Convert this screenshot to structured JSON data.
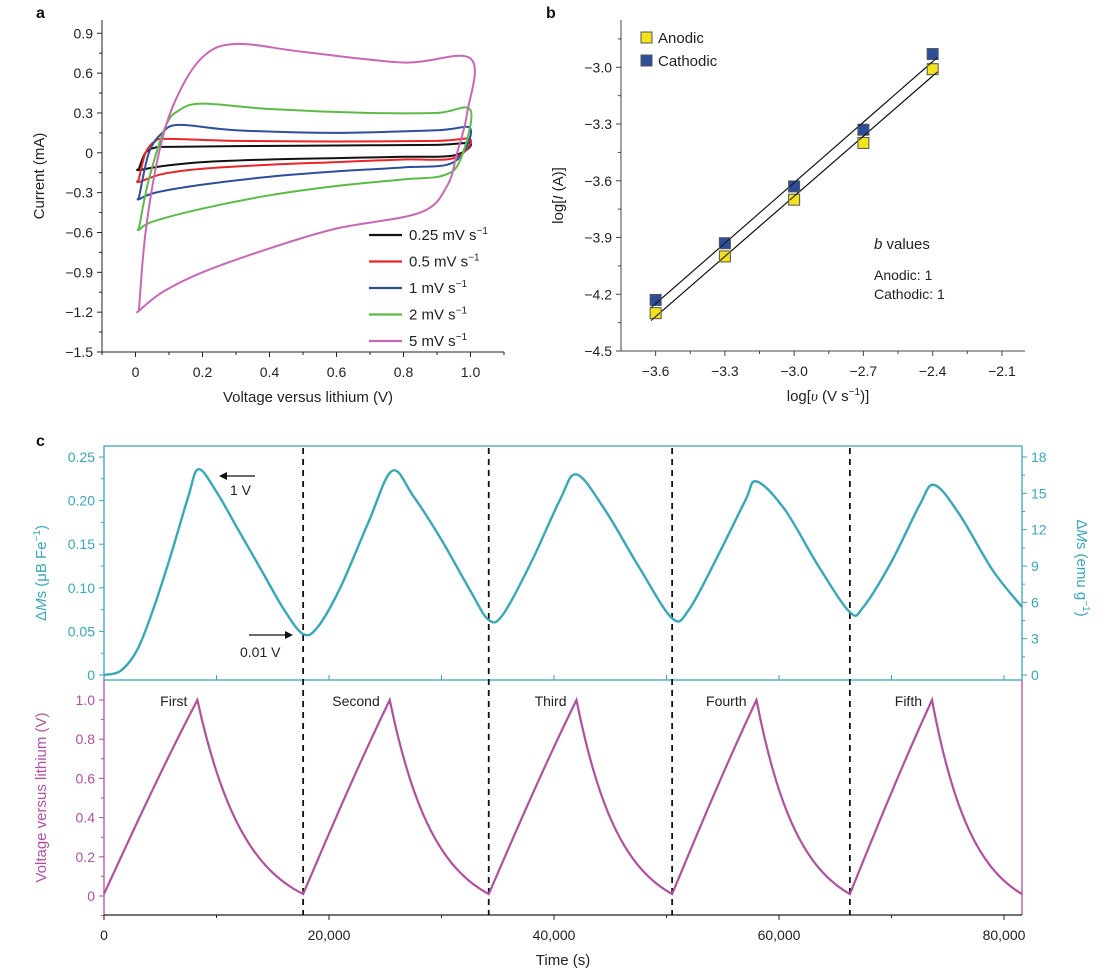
{
  "chart_data": [
    {
      "panel": "a",
      "type": "line",
      "title": "",
      "xlabel": "Voltage versus lithium (V)",
      "ylabel": "Current (mA)",
      "xlim": [
        -0.1,
        1.1
      ],
      "ylim": [
        -1.5,
        1.0
      ],
      "xticks": [
        0,
        0.2,
        0.4,
        0.6,
        0.8,
        1.0
      ],
      "xtick_labels": [
        "0",
        "0.2",
        "0.4",
        "0.6",
        "0.8",
        "1.0"
      ],
      "yticks": [
        0.9,
        0.6,
        0.3,
        0,
        -0.3,
        -0.6,
        -0.9,
        -1.2,
        -1.5
      ],
      "ytick_labels": [
        "0.9",
        "0.6",
        "0.3",
        "0",
        "−0.3",
        "−0.6",
        "−0.9",
        "−1.2",
        "−1.5"
      ],
      "legend_position": "bottom-right",
      "series": [
        {
          "name": "0.25 mV s⁻¹",
          "label_main": "0.25 mV s",
          "label_sup": "−1",
          "color": "#111111",
          "anodic": [
            [
              0.01,
              -0.12
            ],
            [
              0.03,
              0.0
            ],
            [
              0.06,
              0.04
            ],
            [
              0.1,
              0.045
            ],
            [
              0.3,
              0.05
            ],
            [
              0.6,
              0.055
            ],
            [
              0.9,
              0.06
            ],
            [
              1.0,
              0.07
            ]
          ],
          "cathodic": [
            [
              1.0,
              0.02
            ],
            [
              0.95,
              -0.02
            ],
            [
              0.8,
              -0.03
            ],
            [
              0.6,
              -0.04
            ],
            [
              0.4,
              -0.05
            ],
            [
              0.2,
              -0.07
            ],
            [
              0.08,
              -0.1
            ],
            [
              0.01,
              -0.13
            ]
          ]
        },
        {
          "name": "0.5 mV s⁻¹",
          "label_main": "0.5 mV s",
          "label_sup": "−1",
          "color": "#e8262a",
          "anodic": [
            [
              0.01,
              -0.2
            ],
            [
              0.03,
              0.0
            ],
            [
              0.06,
              0.09
            ],
            [
              0.1,
              0.105
            ],
            [
              0.3,
              0.09
            ],
            [
              0.6,
              0.085
            ],
            [
              0.9,
              0.09
            ],
            [
              1.0,
              0.1
            ]
          ],
          "cathodic": [
            [
              1.0,
              0.03
            ],
            [
              0.95,
              -0.04
            ],
            [
              0.8,
              -0.05
            ],
            [
              0.6,
              -0.07
            ],
            [
              0.4,
              -0.09
            ],
            [
              0.2,
              -0.12
            ],
            [
              0.08,
              -0.16
            ],
            [
              0.01,
              -0.22
            ]
          ]
        },
        {
          "name": "1 mV s⁻¹",
          "label_main": "1 mV s",
          "label_sup": "−1",
          "color": "#2d4f9b",
          "anodic": [
            [
              0.01,
              -0.34
            ],
            [
              0.04,
              0.0
            ],
            [
              0.08,
              0.15
            ],
            [
              0.13,
              0.21
            ],
            [
              0.3,
              0.17
            ],
            [
              0.6,
              0.15
            ],
            [
              0.9,
              0.17
            ],
            [
              1.0,
              0.18
            ]
          ],
          "cathodic": [
            [
              1.0,
              0.05
            ],
            [
              0.95,
              -0.07
            ],
            [
              0.8,
              -0.11
            ],
            [
              0.6,
              -0.14
            ],
            [
              0.4,
              -0.18
            ],
            [
              0.2,
              -0.24
            ],
            [
              0.06,
              -0.3
            ],
            [
              0.01,
              -0.35
            ]
          ]
        },
        {
          "name": "2 mV s⁻¹",
          "label_main": "2 mV s",
          "label_sup": "−1",
          "color": "#5cbb46",
          "anodic": [
            [
              0.01,
              -0.57
            ],
            [
              0.04,
              -0.2
            ],
            [
              0.09,
              0.2
            ],
            [
              0.13,
              0.32
            ],
            [
              0.2,
              0.37
            ],
            [
              0.4,
              0.33
            ],
            [
              0.7,
              0.3
            ],
            [
              0.9,
              0.3
            ],
            [
              1.0,
              0.32
            ]
          ],
          "cathodic": [
            [
              1.0,
              0.2
            ],
            [
              0.97,
              -0.05
            ],
            [
              0.92,
              -0.17
            ],
            [
              0.8,
              -0.2
            ],
            [
              0.6,
              -0.25
            ],
            [
              0.4,
              -0.32
            ],
            [
              0.2,
              -0.42
            ],
            [
              0.05,
              -0.52
            ],
            [
              0.01,
              -0.58
            ]
          ]
        },
        {
          "name": "5 mV s⁻¹",
          "label_main": "5 mV s",
          "label_sup": "−1",
          "color": "#c867b4",
          "anodic": [
            [
              0.01,
              -1.19
            ],
            [
              0.03,
              -0.6
            ],
            [
              0.07,
              0.0
            ],
            [
              0.12,
              0.4
            ],
            [
              0.2,
              0.72
            ],
            [
              0.3,
              0.82
            ],
            [
              0.5,
              0.76
            ],
            [
              0.8,
              0.68
            ],
            [
              1.0,
              0.71
            ]
          ],
          "cathodic": [
            [
              1.0,
              0.7
            ],
            [
              0.99,
              0.3
            ],
            [
              0.96,
              0.0
            ],
            [
              0.93,
              -0.25
            ],
            [
              0.85,
              -0.45
            ],
            [
              0.6,
              -0.57
            ],
            [
              0.4,
              -0.72
            ],
            [
              0.2,
              -0.9
            ],
            [
              0.08,
              -1.05
            ],
            [
              0.01,
              -1.19
            ]
          ]
        }
      ]
    },
    {
      "panel": "b",
      "type": "scatter",
      "title": "",
      "xlabel": "log[υ (V s⁻¹)]",
      "xlabel_main": "log[",
      "xlabel_var": "υ",
      "xlabel_rest": " (V s",
      "xlabel_sup": "−1",
      "xlabel_end": ")]",
      "ylabel": "log[I (A)]",
      "ylabel_main": "log[",
      "ylabel_var": "I",
      "ylabel_end": " (A)]",
      "xlim": [
        -3.75,
        -2.0
      ],
      "ylim": [
        -4.5,
        -2.75
      ],
      "xticks": [
        -3.6,
        -3.3,
        -3.0,
        -2.7,
        -2.4,
        -2.1
      ],
      "xtick_labels": [
        "−3.6",
        "−3.3",
        "−3.0",
        "−2.7",
        "−2.4",
        "−2.1"
      ],
      "yticks": [
        -3.0,
        -3.3,
        -3.6,
        -3.9,
        -4.2,
        -4.5
      ],
      "ytick_labels": [
        "−3.0",
        "−3.3",
        "−3.6",
        "−3.9",
        "−4.2",
        "−4.5"
      ],
      "legend_position": "top-left",
      "series": [
        {
          "name": "Anodic",
          "color": "#f1e21b",
          "x": [
            -3.6,
            -3.3,
            -3.0,
            -2.7,
            -2.4
          ],
          "y": [
            -4.3,
            -4.0,
            -3.7,
            -3.4,
            -3.01
          ]
        },
        {
          "name": "Cathodic",
          "color": "#2d4f9b",
          "x": [
            -3.6,
            -3.3,
            -3.0,
            -2.7,
            -2.4
          ],
          "y": [
            -4.23,
            -3.93,
            -3.63,
            -3.33,
            -2.93
          ]
        }
      ],
      "annotation": {
        "title_var": "b",
        "title_rest": " values",
        "lines": [
          "Anodic: 1",
          "Cathodic: 1"
        ]
      }
    },
    {
      "panel": "c-top",
      "type": "line",
      "title": "",
      "xlabel": "",
      "ylabel": "ΔMs (μB Fe⁻¹)",
      "ylabel_pre": "Δ",
      "ylabel_var": "M",
      "ylabel_rest": "s (μB Fe",
      "ylabel_sup": "−1",
      "ylabel_end": ")",
      "ylabel_right": "ΔMs (emu g⁻¹)",
      "ylabel_right_pre": "Δ",
      "ylabel_right_var": "M",
      "ylabel_right_rest": "s (emu g",
      "ylabel_right_sup": "−1",
      "ylabel_right_end": ")",
      "color": "#3aa7b5",
      "xlim": [
        0,
        81600
      ],
      "ylim": [
        -0.002,
        0.262
      ],
      "yticks": [
        0,
        0.05,
        0.1,
        0.15,
        0.2,
        0.25
      ],
      "ytick_labels": [
        "0",
        "0.05",
        "0.10",
        "0.15",
        "0.20",
        "0.25"
      ],
      "yticks_right": [
        0,
        3,
        6,
        9,
        12,
        15,
        18
      ],
      "ytick_labels_right": [
        "0",
        "3",
        "6",
        "9",
        "12",
        "15",
        "18"
      ],
      "ylim_right": [
        0,
        18
      ],
      "points": [
        [
          0,
          0.0
        ],
        [
          1500,
          0.005
        ],
        [
          3000,
          0.03
        ],
        [
          4500,
          0.08
        ],
        [
          6000,
          0.14
        ],
        [
          7500,
          0.205
        ],
        [
          8400,
          0.236
        ],
        [
          10000,
          0.21
        ],
        [
          12000,
          0.165
        ],
        [
          14000,
          0.12
        ],
        [
          16000,
          0.075
        ],
        [
          17700,
          0.047
        ],
        [
          19000,
          0.055
        ],
        [
          21000,
          0.1
        ],
        [
          23500,
          0.175
        ],
        [
          25600,
          0.234
        ],
        [
          27500,
          0.205
        ],
        [
          30000,
          0.155
        ],
        [
          32500,
          0.098
        ],
        [
          34200,
          0.063
        ],
        [
          35500,
          0.07
        ],
        [
          38000,
          0.13
        ],
        [
          40500,
          0.2
        ],
        [
          42000,
          0.23
        ],
        [
          44500,
          0.19
        ],
        [
          47500,
          0.125
        ],
        [
          50500,
          0.065
        ],
        [
          52000,
          0.075
        ],
        [
          54500,
          0.135
        ],
        [
          57000,
          0.2
        ],
        [
          58000,
          0.222
        ],
        [
          60500,
          0.19
        ],
        [
          63500,
          0.125
        ],
        [
          66300,
          0.072
        ],
        [
          67500,
          0.078
        ],
        [
          70000,
          0.13
        ],
        [
          72500,
          0.195
        ],
        [
          73800,
          0.218
        ],
        [
          76000,
          0.185
        ],
        [
          79000,
          0.12
        ],
        [
          81600,
          0.078
        ]
      ],
      "annotations": [
        {
          "text": "1 V",
          "x": 8400,
          "y": 0.236,
          "arrow": "left"
        },
        {
          "text": "0.01 V",
          "x": 17700,
          "y": 0.047,
          "arrow": "right"
        }
      ]
    },
    {
      "panel": "c-bottom",
      "type": "line",
      "title": "",
      "xlabel": "Time (s)",
      "ylabel": "Voltage versus lithium (V)",
      "color": "#b0509e",
      "xlim": [
        0,
        81600
      ],
      "ylim": [
        -0.1,
        1.1
      ],
      "xticks": [
        0,
        20000,
        40000,
        60000,
        80000
      ],
      "xtick_labels": [
        "0",
        "20,000",
        "40,000",
        "60,000",
        "80,000"
      ],
      "yticks": [
        0,
        0.2,
        0.4,
        0.6,
        0.8,
        1.0
      ],
      "ytick_labels": [
        "0",
        "0.2",
        "0.4",
        "0.6",
        "0.8",
        "1.0"
      ],
      "cycles": [
        {
          "label": "First",
          "start": 0,
          "peak": 8300,
          "end": 17700
        },
        {
          "label": "Second",
          "start": 17700,
          "peak": 25400,
          "end": 34200
        },
        {
          "label": "Third",
          "start": 34200,
          "peak": 42000,
          "end": 50500
        },
        {
          "label": "Fourth",
          "start": 50500,
          "peak": 58000,
          "end": 66300
        },
        {
          "label": "Fifth",
          "start": 66300,
          "peak": 73600,
          "end": 81600
        }
      ],
      "vmin": 0.01,
      "vmax": 1.0,
      "cycle_boundaries": [
        17700,
        34200,
        50500,
        66300
      ]
    }
  ],
  "panels": {
    "a": "a",
    "b": "b",
    "c": "c"
  }
}
